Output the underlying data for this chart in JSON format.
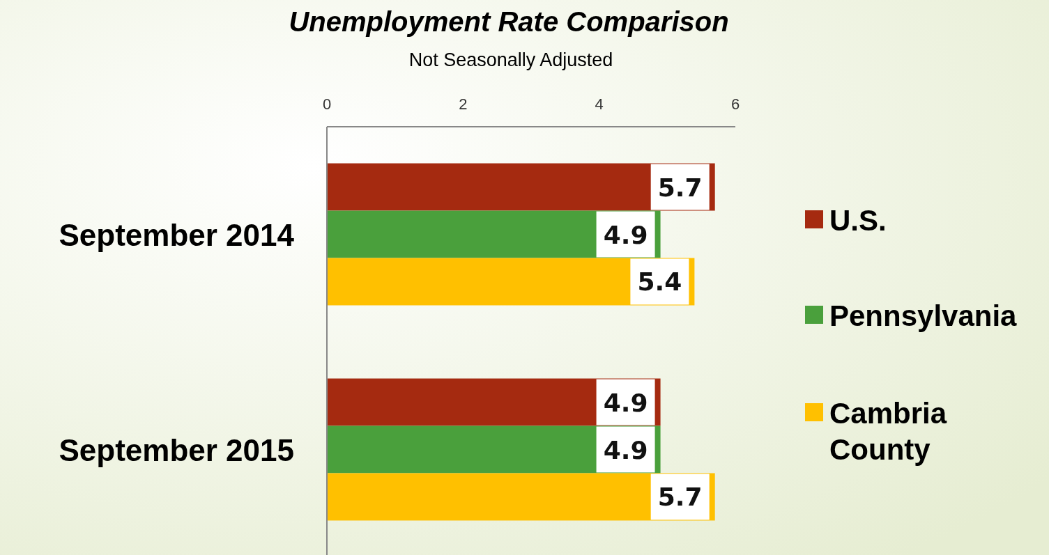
{
  "chart_data": {
    "type": "bar",
    "orientation": "horizontal",
    "title": "Unemployment Rate Comparison",
    "subtitle": "Not Seasonally Adjusted",
    "categories": [
      "September 2014",
      "September 2015"
    ],
    "series": [
      {
        "name": "U.S.",
        "color": "#a52a10",
        "values": [
          5.7,
          4.9
        ]
      },
      {
        "name": "Pennsylvania",
        "color": "#4aa03c",
        "values": [
          4.9,
          4.9
        ]
      },
      {
        "name": "Cambria County",
        "color": "#ffc000",
        "values": [
          5.4,
          5.7
        ]
      }
    ],
    "xlim": [
      0,
      6
    ],
    "xticks": [
      0,
      2,
      4,
      6
    ],
    "data_labels": true,
    "legend": "right"
  }
}
